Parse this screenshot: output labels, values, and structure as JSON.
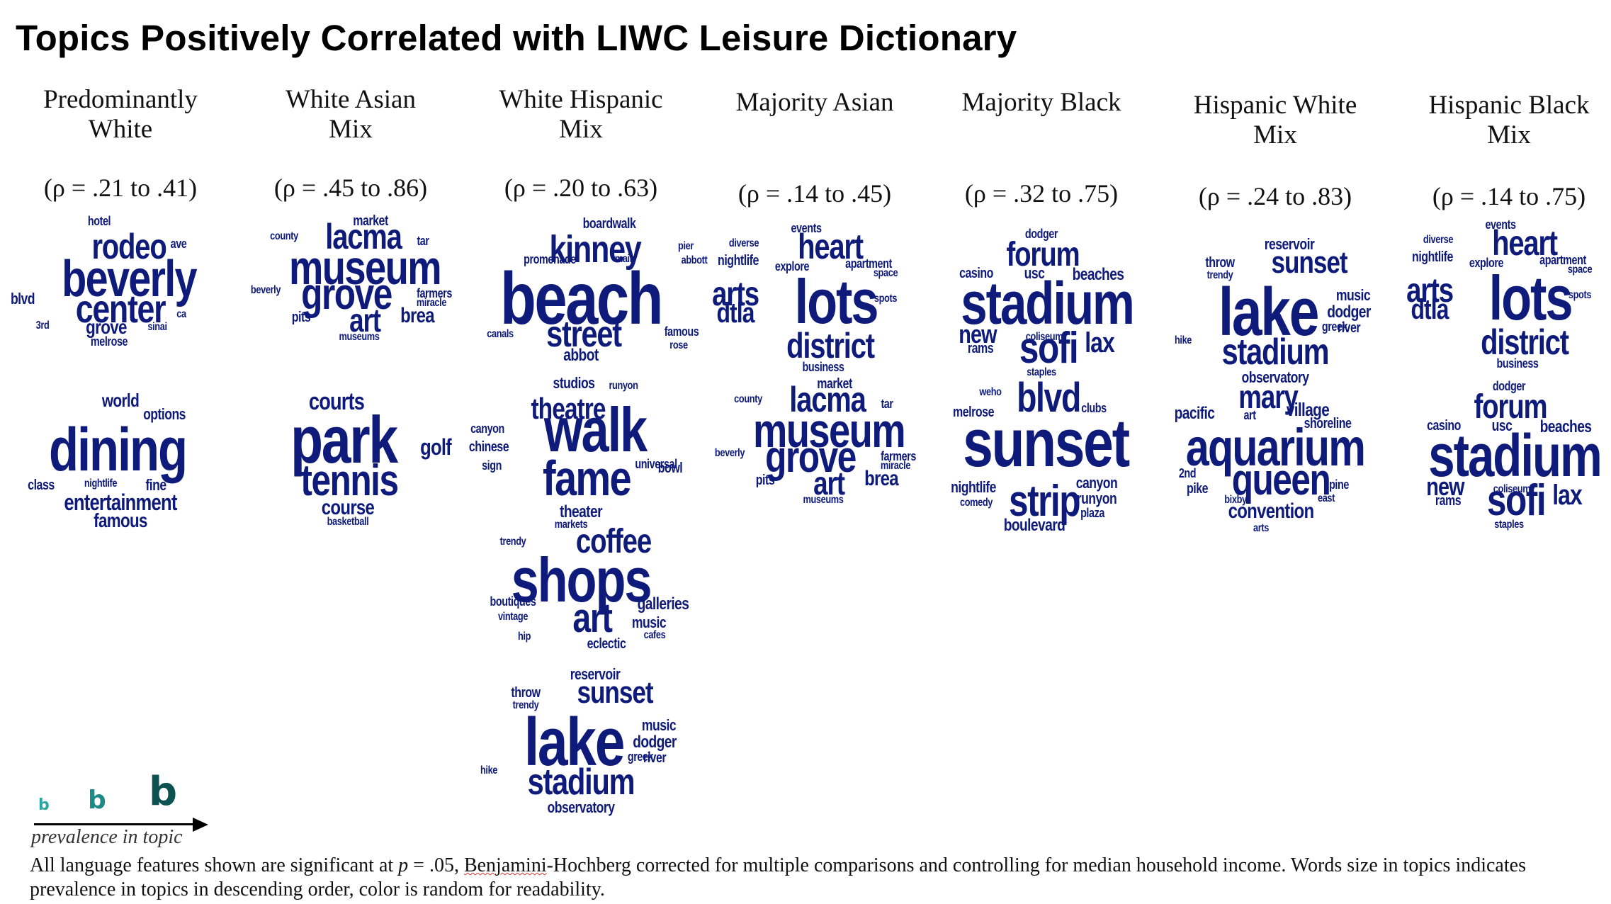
{
  "title": "Topics Positively Correlated with LIWC Leisure Dictionary",
  "columns": [
    {
      "header_line1": "Predominantly",
      "header_line2": "White",
      "rho": "(ρ = .21 to .41)",
      "clouds": [
        [
          "hotel",
          "rodeo",
          "ave",
          "beverly",
          "blvd",
          "center",
          "ca",
          "3rd",
          "grove",
          "sinai",
          "melrose"
        ],
        [
          "world",
          "options",
          "dining",
          "class",
          "nightlife",
          "fine",
          "entertainment",
          "famous"
        ]
      ]
    },
    {
      "header_line1": "White Asian",
      "header_line2": "Mix",
      "rho": "(ρ = .45 to .86)",
      "clouds": [
        [
          "market",
          "county",
          "lacma",
          "tar",
          "museum",
          "beverly",
          "grove",
          "farmers",
          "miracle",
          "pits",
          "art",
          "brea",
          "museums"
        ],
        [
          "courts",
          "park",
          "golf",
          "tennis",
          "course",
          "basketball"
        ]
      ]
    },
    {
      "header_line1": "White Hispanic",
      "header_line2": "Mix",
      "rho": "(ρ = .20 to .63)",
      "clouds": [
        [
          "boardwalk",
          "kinney",
          "pier",
          "promenade",
          "main",
          "abbott",
          "beach",
          "canals",
          "street",
          "famous",
          "rose",
          "abbot"
        ],
        [
          "studios",
          "runyon",
          "theatre",
          "canyon",
          "walk",
          "chinese",
          "sign",
          "universal",
          "bowl",
          "fame",
          "theater"
        ],
        [
          "markets",
          "trendy",
          "coffee",
          "shops",
          "boutiques",
          "vintage",
          "galleries",
          "art",
          "music",
          "hip",
          "eclectic",
          "cafes"
        ],
        [
          "reservoir",
          "throw",
          "sunset",
          "trendy",
          "lake",
          "music",
          "dodger",
          "greek",
          "river",
          "hike",
          "stadium",
          "observatory"
        ]
      ]
    },
    {
      "header_line1": "Majority Asian",
      "header_line2": "",
      "rho": "(ρ = .14 to .45)",
      "clouds": [
        [
          "events",
          "diverse",
          "heart",
          "nightlife",
          "explore",
          "apartment",
          "space",
          "arts",
          "lots",
          "dtla",
          "spots",
          "district",
          "business"
        ],
        [
          "market",
          "county",
          "lacma",
          "tar",
          "museum",
          "beverly",
          "grove",
          "farmers",
          "miracle",
          "pits",
          "art",
          "brea",
          "museums"
        ]
      ]
    },
    {
      "header_line1": "Majority Black",
      "header_line2": "",
      "rho": "(ρ = .32 to .75)",
      "clouds": [
        [
          "dodger",
          "forum",
          "casino",
          "usc",
          "beaches",
          "stadium",
          "new",
          "coliseum",
          "rams",
          "sofi",
          "lax",
          "staples"
        ],
        [
          "weho",
          "blvd",
          "melrose",
          "clubs",
          "sunset",
          "nightlife",
          "canyon",
          "comedy",
          "strip",
          "runyon",
          "plaza",
          "boulevard"
        ]
      ]
    },
    {
      "header_line1": "Hispanic White",
      "header_line2": "Mix",
      "rho": "(ρ = .24 to .83)",
      "clouds": [
        [
          "reservoir",
          "throw",
          "sunset",
          "trendy",
          "lake",
          "music",
          "dodger",
          "greek",
          "river",
          "hike",
          "stadium",
          "observatory"
        ],
        [
          "mary",
          "pacific",
          "village",
          "art",
          "shoreline",
          "aquarium",
          "2nd",
          "queen",
          "pike",
          "pine",
          "bixby",
          "east",
          "convention",
          "arts"
        ]
      ]
    },
    {
      "header_line1": "Hispanic Black",
      "header_line2": "Mix",
      "rho": "(ρ = .14 to .75)",
      "clouds": [
        [
          "events",
          "diverse",
          "heart",
          "nightlife",
          "explore",
          "apartment",
          "space",
          "arts",
          "lots",
          "dtla",
          "spots",
          "district",
          "business"
        ],
        [
          "dodger",
          "forum",
          "casino",
          "usc",
          "beaches",
          "stadium",
          "new",
          "coliseum",
          "rams",
          "sofi",
          "lax",
          "staples"
        ]
      ]
    }
  ],
  "legend": {
    "letter": "b",
    "caption": "prevalence in topic",
    "colors": [
      "#2aa7a1",
      "#1d8a86",
      "#0c5250"
    ]
  },
  "footnote": {
    "part1": "All language features shown are significant at ",
    "p": "p",
    "part2": " = .05, ",
    "squiggle": "Benjamini",
    "part3": "-Hochberg corrected  for multiple comparisons and controlling for median household income. Words size in topics indicates prevalence in topics in descending order, color is random for readability."
  },
  "colors": {
    "word": "#0f1b7a"
  }
}
